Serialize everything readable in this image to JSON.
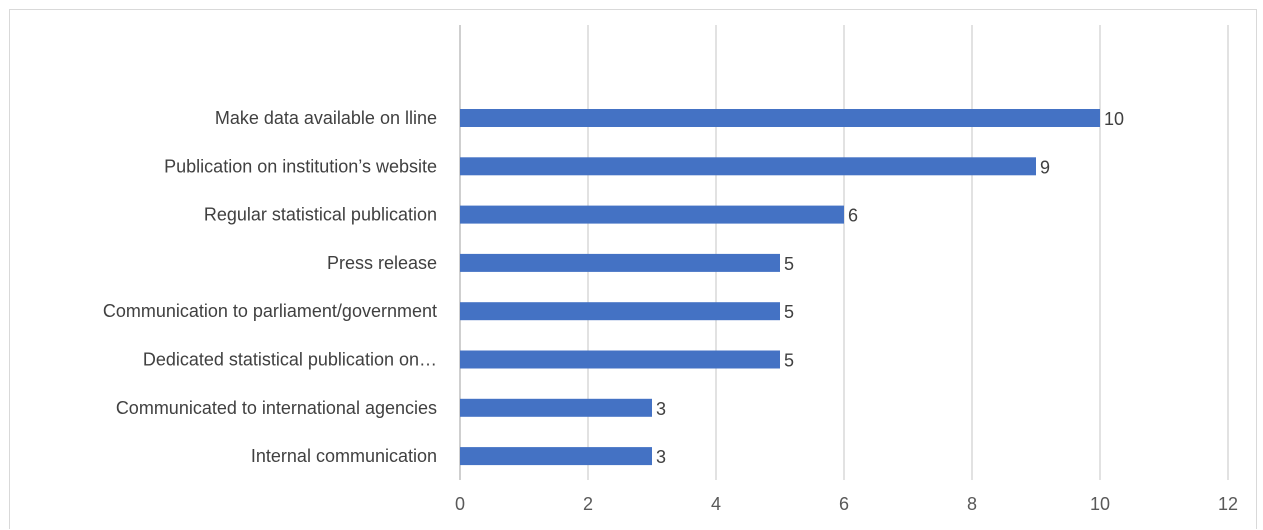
{
  "chart_data": {
    "type": "bar",
    "orientation": "horizontal",
    "categories": [
      "Make data available on lline",
      "Publication on institution’s website",
      "Regular  statistical publication",
      "Press release",
      "Communication to parliament/government",
      "Dedicated statistical publication on…",
      "Communicated to international agencies",
      "Internal communication"
    ],
    "values": [
      10,
      9,
      6,
      5,
      5,
      5,
      3,
      3
    ],
    "xlim": [
      0,
      12
    ],
    "xticks": [
      0,
      2,
      4,
      6,
      8,
      10,
      12
    ],
    "grid": true,
    "data_labels": true,
    "bar_color": "#4472c4",
    "grid_color": "#d9d9d9"
  }
}
